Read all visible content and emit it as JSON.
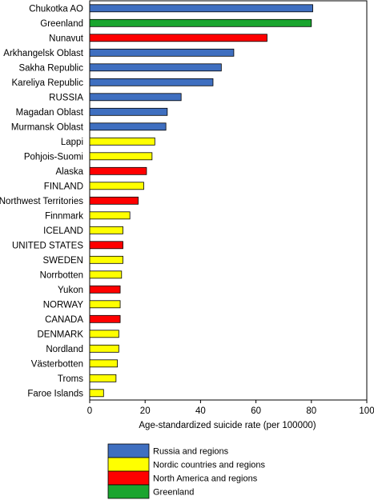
{
  "chart_data": {
    "type": "bar",
    "orientation": "horizontal",
    "title": "",
    "xlabel": "Age-standardized suicide rate (per 100000)",
    "ylabel": "",
    "xlim": [
      0,
      100
    ],
    "xticks": [
      0,
      20,
      40,
      60,
      80,
      100
    ],
    "grid": false,
    "legend_position": "bottom",
    "categories": [
      "Chukotka AO",
      "Greenland",
      "Nunavut",
      "Arkhangelsk Oblast",
      "Sakha Republic",
      "Kareliya Republic",
      "RUSSIA",
      "Magadan Oblast",
      "Murmansk Oblast",
      "Lappi",
      "Pohjois-Suomi",
      "Alaska",
      "FINLAND",
      "Northwest Territories",
      "Finnmark",
      "ICELAND",
      "UNITED STATES",
      "SWEDEN",
      "Norrbotten",
      "Yukon",
      "NORWAY",
      "CANADA",
      "DENMARK",
      "Nordland",
      "Västerbotten",
      "Troms",
      "Faroe Islands"
    ],
    "values": [
      80.5,
      80,
      64,
      52,
      47.5,
      44.5,
      33,
      28,
      27.5,
      23.5,
      22.5,
      20.5,
      19.5,
      17.5,
      14.5,
      12,
      12,
      12,
      11.5,
      11,
      11,
      11,
      10.5,
      10.5,
      10,
      9.5,
      5
    ],
    "groups": [
      "russia",
      "greenland",
      "northamerica",
      "russia",
      "russia",
      "russia",
      "russia",
      "russia",
      "russia",
      "nordic",
      "nordic",
      "northamerica",
      "nordic",
      "northamerica",
      "nordic",
      "nordic",
      "northamerica",
      "nordic",
      "nordic",
      "northamerica",
      "nordic",
      "northamerica",
      "nordic",
      "nordic",
      "nordic",
      "nordic",
      "nordic"
    ],
    "legend": [
      {
        "key": "russia",
        "label": "Russia and regions",
        "color": "#3f6fc0"
      },
      {
        "key": "nordic",
        "label": "Nordic countries and regions",
        "color": "#ffff00"
      },
      {
        "key": "northamerica",
        "label": "North America and regions",
        "color": "#ff0000"
      },
      {
        "key": "greenland",
        "label": "Greenland",
        "color": "#1aa52f"
      }
    ]
  }
}
